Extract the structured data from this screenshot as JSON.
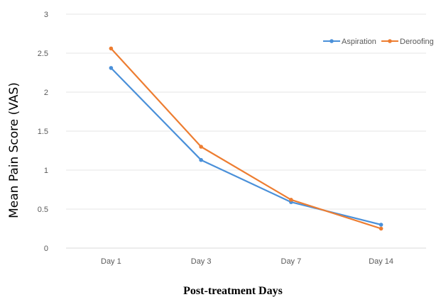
{
  "chart_data": {
    "type": "line",
    "categories": [
      "Day 1",
      "Day 3",
      "Day 7",
      "Day 14"
    ],
    "series": [
      {
        "name": "Aspiration",
        "values": [
          2.31,
          1.13,
          0.59,
          0.3
        ],
        "color": "#4a90d9"
      },
      {
        "name": "Deroofing",
        "values": [
          2.56,
          1.3,
          0.62,
          0.25
        ],
        "color": "#ed7d31"
      }
    ],
    "xlabel": "Post-treatment Days",
    "ylabel": "Mean Pain Score (VAS)",
    "ylim": [
      0,
      3
    ],
    "yticks": [
      "0",
      "0.5",
      "1",
      "1.5",
      "2",
      "2.5",
      "3"
    ],
    "grid": "horizontal",
    "legend_position": "top-right"
  }
}
